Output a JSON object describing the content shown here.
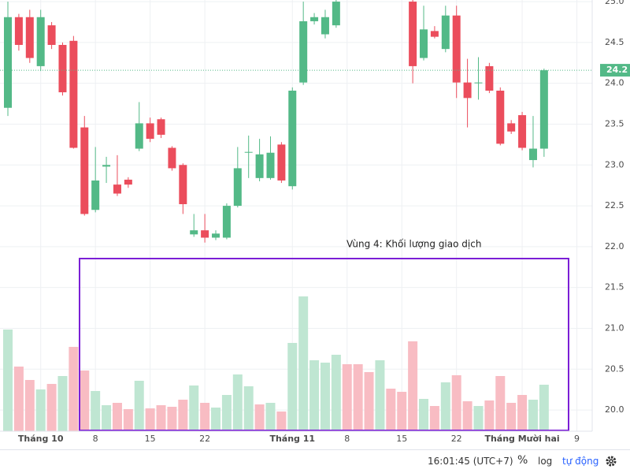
{
  "chart_data": {
    "type": "candlestick",
    "annotation": "Vùng 4: Khối lượng giao dịch",
    "open": [
      23.7,
      24.81,
      24.81,
      24.21,
      24.71,
      24.47,
      24.52,
      23.46,
      22.45,
      22.98,
      22.76,
      22.82,
      23.2,
      23.51,
      23.56,
      23.21,
      23.0,
      22.15,
      22.2,
      22.11,
      22.11,
      22.5,
      23.15,
      22.84,
      22.84,
      23.25,
      22.74,
      24.01,
      24.76,
      24.6,
      24.71,
      null,
      null,
      null,
      null,
      null,
      null,
      25.0,
      24.31,
      24.64,
      24.42,
      24.83,
      24.01,
      24.0,
      24.21,
      23.91,
      23.51,
      23.61,
      23.06,
      23.2
    ],
    "high": [
      25.0,
      24.85,
      24.9,
      24.9,
      24.75,
      24.5,
      24.58,
      23.6,
      23.22,
      23.1,
      23.12,
      22.85,
      23.77,
      23.58,
      23.58,
      23.23,
      23.02,
      22.4,
      22.4,
      22.2,
      22.53,
      23.22,
      23.36,
      23.32,
      23.35,
      23.28,
      23.95,
      25.0,
      24.86,
      24.9,
      25.02,
      null,
      null,
      null,
      null,
      null,
      null,
      25.02,
      24.95,
      24.7,
      24.95,
      24.95,
      24.3,
      24.32,
      24.25,
      23.95,
      23.55,
      23.65,
      23.6,
      24.18
    ],
    "low": [
      23.6,
      24.4,
      24.25,
      24.15,
      24.42,
      23.85,
      23.2,
      22.38,
      22.42,
      22.78,
      22.62,
      22.72,
      23.17,
      23.28,
      23.33,
      22.93,
      22.4,
      22.12,
      22.05,
      22.08,
      22.09,
      22.48,
      22.84,
      22.8,
      22.82,
      22.78,
      22.7,
      23.98,
      24.72,
      24.55,
      24.68,
      null,
      null,
      null,
      null,
      null,
      null,
      24.0,
      24.28,
      24.55,
      24.38,
      23.82,
      23.46,
      23.8,
      23.88,
      23.24,
      23.38,
      23.18,
      22.97,
      23.1
    ],
    "close": [
      24.81,
      24.47,
      24.31,
      24.81,
      24.47,
      23.89,
      23.21,
      22.4,
      22.81,
      23.0,
      22.65,
      22.76,
      23.51,
      23.32,
      23.37,
      22.96,
      22.52,
      22.2,
      22.11,
      22.16,
      22.5,
      22.96,
      23.16,
      23.13,
      23.15,
      22.81,
      23.91,
      24.76,
      24.81,
      24.81,
      25.0,
      null,
      null,
      null,
      null,
      null,
      null,
      24.21,
      24.66,
      24.57,
      24.83,
      24.01,
      23.82,
      24.01,
      23.91,
      23.26,
      23.41,
      23.21,
      23.2,
      24.16
    ],
    "up_color": "#53b987",
    "down_color": "#eb4d5c",
    "volume": {
      "values": [
        129,
        82,
        65,
        53,
        60,
        70,
        107,
        77,
        51,
        33,
        36,
        28,
        64,
        29,
        33,
        31,
        40,
        58,
        36,
        30,
        46,
        72,
        57,
        34,
        36,
        25,
        112,
        171,
        90,
        87,
        97,
        85,
        85,
        75,
        90,
        54,
        50,
        114,
        41,
        32,
        62,
        71,
        38,
        32,
        39,
        70,
        36,
        46,
        40,
        59
      ],
      "colors": [
        "#bfe6d2",
        "#f8bcc3",
        "#f8bcc3",
        "#bfe6d2",
        "#f8bcc3",
        "#bfe6d2",
        "#f8bcc3",
        "#f8bcc3",
        "#bfe6d2",
        "#bfe6d2",
        "#f8bcc3",
        "#f8bcc3",
        "#bfe6d2",
        "#f8bcc3",
        "#f8bcc3",
        "#f8bcc3",
        "#f8bcc3",
        "#bfe6d2",
        "#f8bcc3",
        "#bfe6d2",
        "#bfe6d2",
        "#bfe6d2",
        "#bfe6d2",
        "#f8bcc3",
        "#bfe6d2",
        "#f8bcc3",
        "#bfe6d2",
        "#bfe6d2",
        "#bfe6d2",
        "#bfe6d2",
        "#bfe6d2",
        "#f8bcc3",
        "#f8bcc3",
        "#f8bcc3",
        "#bfe6d2",
        "#f8bcc3",
        "#f8bcc3",
        "#f8bcc3",
        "#bfe6d2",
        "#f8bcc3",
        "#bfe6d2",
        "#f8bcc3",
        "#f8bcc3",
        "#bfe6d2",
        "#f8bcc3",
        "#f8bcc3",
        "#f8bcc3",
        "#f8bcc3",
        "#bfe6d2",
        "#bfe6d2"
      ],
      "vlim": [
        0,
        300
      ]
    },
    "last_price": {
      "value": 24.16,
      "label": "24.2",
      "color": "#53b987"
    },
    "xlim": [
      -0.72,
      53.4
    ],
    "xticks": [
      {
        "value": 3,
        "label": "Tháng 10"
      },
      {
        "value": 8,
        "label": "8"
      },
      {
        "value": 13,
        "label": "15"
      },
      {
        "value": 18,
        "label": "22"
      },
      {
        "value": 26,
        "label": "Tháng 11"
      },
      {
        "value": 31,
        "label": "8"
      },
      {
        "value": 36,
        "label": "15"
      },
      {
        "value": 41,
        "label": "22"
      },
      {
        "value": 47,
        "label": "Tháng Mười hai"
      },
      {
        "value": 52,
        "label": "9"
      }
    ],
    "ylim": [
      19.74,
      25.02
    ],
    "yticks": [
      {
        "value": 20,
        "label": "20.0"
      },
      20.5,
      {
        "value": 21,
        "label": "21.0"
      },
      21.5,
      {
        "value": 22,
        "label": "22.0"
      },
      22.5,
      {
        "value": 23,
        "label": "23.0"
      },
      23.5,
      {
        "value": 24,
        "label": "24.0"
      },
      24.5,
      {
        "value": 25,
        "label": "25.0"
      }
    ],
    "grid": true
  },
  "toolbar": {
    "time": "16:01:45 (UTC+7)",
    "percent": "%",
    "log": "log",
    "auto": "tự động"
  }
}
